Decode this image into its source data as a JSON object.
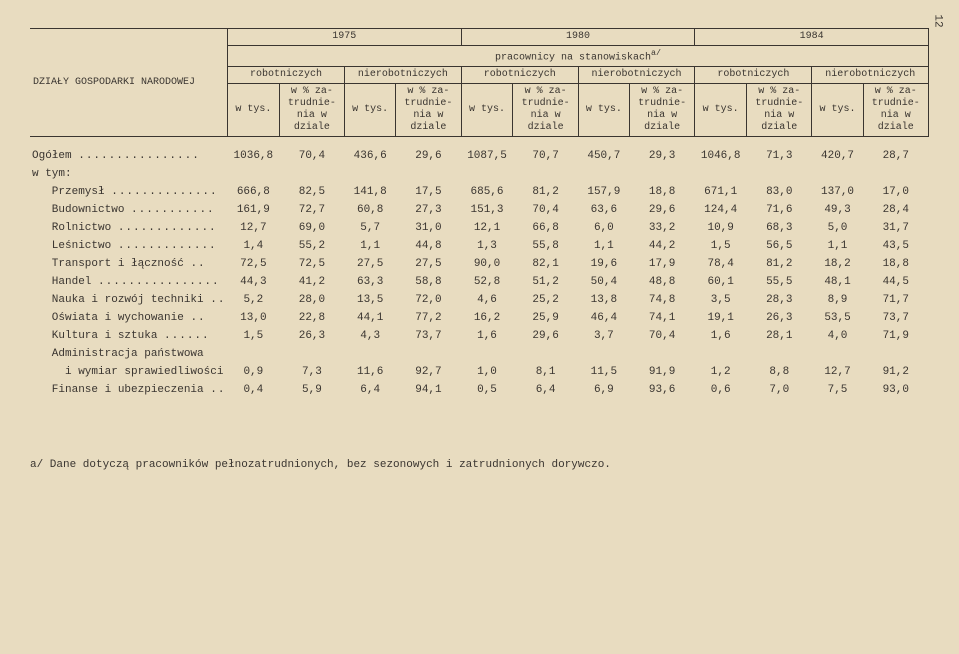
{
  "page_number": "12",
  "header": {
    "row_title": "DZIAŁY GOSPODARKI NARODOWEJ",
    "years": [
      "1975",
      "1980",
      "1984"
    ],
    "subhead": "pracownicy na stanowiskach",
    "subhead_sup": "a/",
    "groups": [
      "robotniczych",
      "nierobotniczych",
      "robotniczych",
      "nierobotniczych",
      "robotniczych",
      "nierobotniczych"
    ],
    "sub_a": "w tys.",
    "sub_b": "w % za-\ntrudnie-\nnia w\ndziale"
  },
  "rows": [
    {
      "label": "Ogółem",
      "dots": true,
      "indent": 0,
      "vals": [
        "1036,8",
        "70,4",
        "436,6",
        "29,6",
        "1087,5",
        "70,7",
        "450,7",
        "29,3",
        "1046,8",
        "71,3",
        "420,7",
        "28,7"
      ]
    },
    {
      "label": "w tym:",
      "dots": false,
      "indent": 0,
      "vals": [
        "",
        "",
        "",
        "",
        "",
        "",
        "",
        "",
        "",
        "",
        "",
        ""
      ]
    },
    {
      "label": "Przemysł",
      "dots": true,
      "indent": 1,
      "vals": [
        "666,8",
        "82,5",
        "141,8",
        "17,5",
        "685,6",
        "81,2",
        "157,9",
        "18,8",
        "671,1",
        "83,0",
        "137,0",
        "17,0"
      ]
    },
    {
      "label": "Budownictwo",
      "dots": true,
      "indent": 1,
      "vals": [
        "161,9",
        "72,7",
        "60,8",
        "27,3",
        "151,3",
        "70,4",
        "63,6",
        "29,6",
        "124,4",
        "71,6",
        "49,3",
        "28,4"
      ]
    },
    {
      "label": "Rolnictwo",
      "dots": true,
      "indent": 1,
      "vals": [
        "12,7",
        "69,0",
        "5,7",
        "31,0",
        "12,1",
        "66,8",
        "6,0",
        "33,2",
        "10,9",
        "68,3",
        "5,0",
        "31,7"
      ]
    },
    {
      "label": "Leśnictwo",
      "dots": true,
      "indent": 1,
      "vals": [
        "1,4",
        "55,2",
        "1,1",
        "44,8",
        "1,3",
        "55,8",
        "1,1",
        "44,2",
        "1,5",
        "56,5",
        "1,1",
        "43,5"
      ]
    },
    {
      "label": "Transport i łączność",
      "dots": true,
      "indent": 1,
      "vals": [
        "72,5",
        "72,5",
        "27,5",
        "27,5",
        "90,0",
        "82,1",
        "19,6",
        "17,9",
        "78,4",
        "81,2",
        "18,2",
        "18,8"
      ]
    },
    {
      "label": "Handel",
      "dots": true,
      "indent": 1,
      "vals": [
        "44,3",
        "41,2",
        "63,3",
        "58,8",
        "52,8",
        "51,2",
        "50,4",
        "48,8",
        "60,1",
        "55,5",
        "48,1",
        "44,5"
      ]
    },
    {
      "label": "Nauka i rozwój techniki",
      "dots": true,
      "indent": 1,
      "vals": [
        "5,2",
        "28,0",
        "13,5",
        "72,0",
        "4,6",
        "25,2",
        "13,8",
        "74,8",
        "3,5",
        "28,3",
        "8,9",
        "71,7"
      ]
    },
    {
      "label": "Oświata i wychowanie",
      "dots": true,
      "indent": 1,
      "vals": [
        "13,0",
        "22,8",
        "44,1",
        "77,2",
        "16,2",
        "25,9",
        "46,4",
        "74,1",
        "19,1",
        "26,3",
        "53,5",
        "73,7"
      ]
    },
    {
      "label": "Kultura i sztuka",
      "dots": true,
      "indent": 1,
      "vals": [
        "1,5",
        "26,3",
        "4,3",
        "73,7",
        "1,6",
        "29,6",
        "3,7",
        "70,4",
        "1,6",
        "28,1",
        "4,0",
        "71,9"
      ]
    },
    {
      "label": "Administracja państwowa",
      "dots": false,
      "indent": 1,
      "vals": [
        "",
        "",
        "",
        "",
        "",
        "",
        "",
        "",
        "",
        "",
        "",
        ""
      ]
    },
    {
      "label": "i wymiar sprawiedliwości",
      "dots": false,
      "indent": 2,
      "vals": [
        "0,9",
        "7,3",
        "11,6",
        "92,7",
        "1,0",
        "8,1",
        "11,5",
        "91,9",
        "1,2",
        "8,8",
        "12,7",
        "91,2"
      ]
    },
    {
      "label": "Finanse i ubezpieczenia",
      "dots": true,
      "indent": 1,
      "vals": [
        "0,4",
        "5,9",
        "6,4",
        "94,1",
        "0,5",
        "6,4",
        "6,9",
        "93,6",
        "0,6",
        "7,0",
        "7,5",
        "93,0"
      ]
    }
  ],
  "footnote": "a/ Dane dotyczą pracowników pełnozatrudnionych, bez sezonowych i zatrudnionych dorywczo."
}
